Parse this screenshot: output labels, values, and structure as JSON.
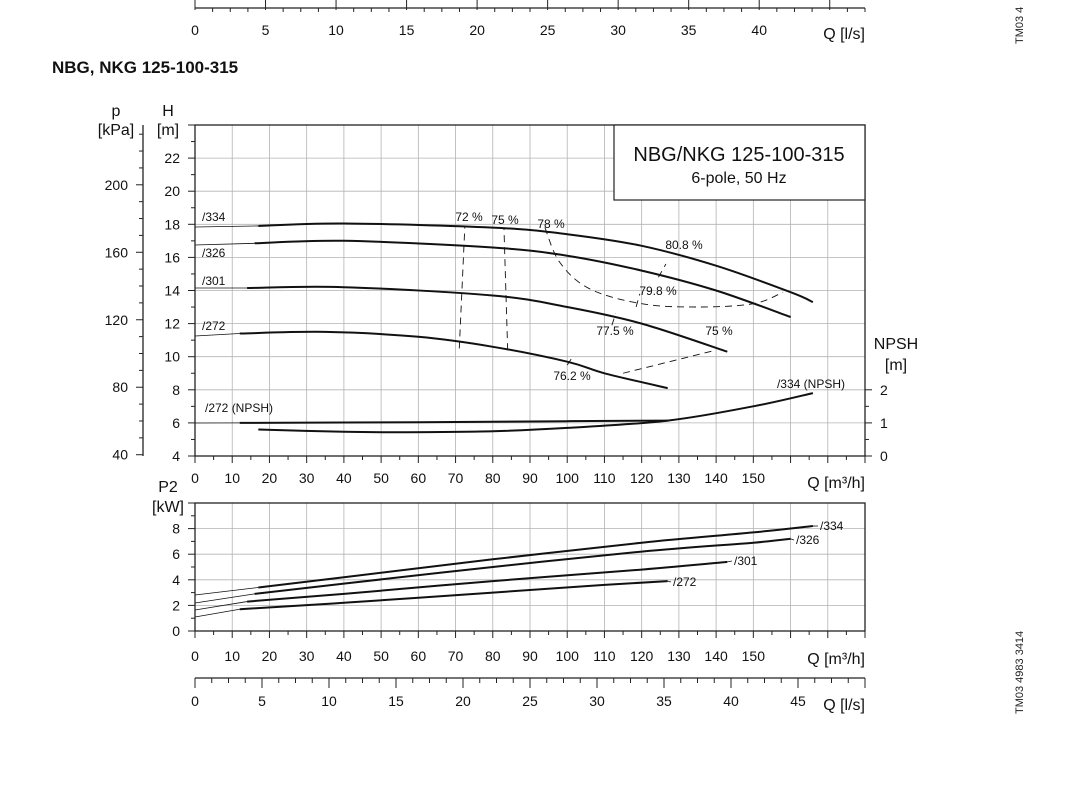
{
  "title": "NBG, NKG 125-100-315",
  "side_code_top": "TM03 4",
  "side_code_bottom": "TM03 4983 3414",
  "legend_box": {
    "line1": "NBG/NKG 125-100-315",
    "line2": "6-pole, 50 Hz"
  },
  "colors": {
    "curve": "#111111",
    "grid": "#b3b3b3",
    "axis": "#222222"
  },
  "chart_data": [
    {
      "id": "flow_axis_top",
      "type": "axis",
      "label": "Q [l/s]",
      "xlim": [
        0,
        47.5
      ],
      "ticks": [
        0,
        5,
        10,
        15,
        20,
        25,
        30,
        35,
        40
      ]
    },
    {
      "id": "head_curves",
      "type": "line",
      "xlabel": "Q [m³/h]",
      "xlim": [
        0,
        180
      ],
      "x_ticks": [
        0,
        10,
        20,
        30,
        40,
        50,
        60,
        70,
        80,
        90,
        100,
        110,
        120,
        130,
        140,
        150
      ],
      "ylabel_H": "H",
      "ylabel_H_unit": "[m]",
      "ylim_H": [
        4,
        24
      ],
      "H_ticks": [
        4,
        6,
        8,
        10,
        12,
        14,
        16,
        18,
        20,
        22
      ],
      "ylabel_p": "p",
      "ylabel_p_unit": "[kPa]",
      "p_ticks": [
        40,
        80,
        120,
        160,
        200
      ],
      "ylabel_npsh": "NPSH",
      "ylabel_npsh_unit": "[m]",
      "npsh_ticks": [
        0,
        1,
        2
      ],
      "grid": true,
      "series": [
        {
          "name": "/334",
          "x": [
            17,
            40,
            80,
            100,
            120,
            140,
            160,
            166
          ],
          "y": [
            17.9,
            18.05,
            17.8,
            17.4,
            16.7,
            15.5,
            13.9,
            13.3
          ]
        },
        {
          "name": "/326",
          "x": [
            16,
            40,
            80,
            100,
            120,
            140,
            160
          ],
          "y": [
            16.85,
            17.0,
            16.6,
            16.1,
            15.2,
            14.0,
            12.4
          ]
        },
        {
          "name": "/301",
          "x": [
            14,
            40,
            80,
            100,
            120,
            143
          ],
          "y": [
            14.15,
            14.2,
            13.7,
            13.0,
            12.0,
            10.3
          ]
        },
        {
          "name": "/272",
          "x": [
            12,
            35,
            60,
            80,
            100,
            110,
            127
          ],
          "y": [
            11.4,
            11.5,
            11.2,
            10.6,
            9.7,
            9.0,
            8.1
          ]
        },
        {
          "name": "/272 (NPSH)",
          "axis": "npsh",
          "x": [
            12,
            60,
            100,
            127
          ],
          "y": [
            1.0,
            1.02,
            1.05,
            1.07
          ]
        },
        {
          "name": "/334 (NPSH)",
          "axis": "npsh",
          "x": [
            17,
            40,
            55,
            80,
            100,
            127,
            150,
            166
          ],
          "y": [
            0.8,
            0.73,
            0.72,
            0.75,
            0.85,
            1.07,
            1.5,
            1.9
          ]
        }
      ],
      "efficiency_lines": [
        {
          "label": "72 %",
          "x": [
            71,
            72.5
          ],
          "y": [
            10.5,
            17.9
          ]
        },
        {
          "label": "75 %",
          "x": [
            84,
            83
          ],
          "y": [
            10.4,
            17.8
          ]
        },
        {
          "label": "78 %",
          "x": [
            94,
            98,
            106,
            120,
            135,
            150,
            158
          ],
          "y": [
            17.8,
            15.7,
            14.1,
            13.2,
            13.0,
            13.2,
            13.9
          ]
        },
        {
          "label": "80.8 %",
          "x": [
            124.5,
            126.5
          ],
          "y": [
            14.8,
            15.6
          ]
        },
        {
          "label": "79.8 %",
          "x": [
            118.5,
            119.5
          ],
          "y": [
            13.0,
            13.8
          ]
        },
        {
          "label": "77.5 %",
          "x": [
            112,
            113
          ],
          "y": [
            11.9,
            12.6
          ]
        },
        {
          "label": "75 %",
          "x": [
            115,
            140
          ],
          "y": [
            9.0,
            10.4
          ]
        },
        {
          "label": "76.2 %",
          "x": [
            100,
            101.5
          ],
          "y": [
            9.5,
            10.0
          ]
        }
      ]
    },
    {
      "id": "power_curves",
      "type": "line",
      "xlabel": "Q [m³/h]",
      "xlim": [
        0,
        180
      ],
      "x_ticks": [
        0,
        10,
        20,
        30,
        40,
        50,
        60,
        70,
        80,
        90,
        100,
        110,
        120,
        130,
        140,
        150
      ],
      "ylabel": "P2",
      "ylabel_unit": "[kW]",
      "ylim": [
        0,
        10
      ],
      "y_ticks": [
        0,
        2,
        4,
        6,
        8
      ],
      "grid": true,
      "series": [
        {
          "name": "/334",
          "x": [
            17,
            40,
            80,
            120,
            150,
            166
          ],
          "y": [
            3.4,
            4.2,
            5.6,
            6.9,
            7.7,
            8.2
          ]
        },
        {
          "name": "/326",
          "x": [
            16,
            40,
            80,
            120,
            150,
            160
          ],
          "y": [
            2.9,
            3.7,
            5.0,
            6.2,
            6.9,
            7.2
          ]
        },
        {
          "name": "/301",
          "x": [
            14,
            40,
            80,
            120,
            143
          ],
          "y": [
            2.3,
            2.9,
            3.9,
            4.8,
            5.4
          ]
        },
        {
          "name": "/272",
          "x": [
            12,
            40,
            80,
            110,
            127
          ],
          "y": [
            1.7,
            2.2,
            3.0,
            3.6,
            3.9
          ]
        }
      ]
    },
    {
      "id": "flow_axis_bottom",
      "type": "axis",
      "label": "Q [l/s]",
      "xlim": [
        0,
        50
      ],
      "ticks": [
        0,
        5,
        10,
        15,
        20,
        25,
        30,
        35,
        40,
        45
      ]
    }
  ]
}
